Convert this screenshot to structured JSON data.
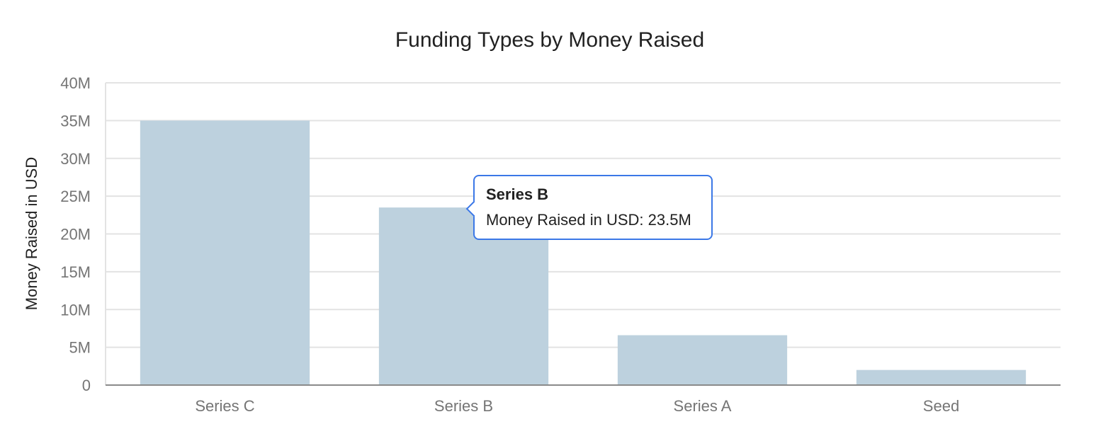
{
  "chart_data": {
    "type": "bar",
    "title": "Funding Types by Money Raised",
    "xlabel": "",
    "ylabel": "Money Raised in USD",
    "categories": [
      "Series C",
      "Series B",
      "Series A",
      "Seed"
    ],
    "series": [
      {
        "values": [
          35000000,
          23500000,
          6600000,
          2000000
        ]
      }
    ],
    "ylim": [
      0,
      40000000
    ],
    "yticks": [
      {
        "value": 0,
        "label": "0"
      },
      {
        "value": 5000000,
        "label": "5M"
      },
      {
        "value": 10000000,
        "label": "10M"
      },
      {
        "value": 15000000,
        "label": "15M"
      },
      {
        "value": 20000000,
        "label": "20M"
      },
      {
        "value": 25000000,
        "label": "25M"
      },
      {
        "value": 30000000,
        "label": "30M"
      },
      {
        "value": 35000000,
        "label": "35M"
      },
      {
        "value": 40000000,
        "label": "40M"
      }
    ],
    "grid": true,
    "legend": "none",
    "bar_color": "#bdd1de"
  },
  "tooltip": {
    "title": "Series B",
    "body": "Money Raised in USD: 23.5M",
    "border_color": "#3b78e7"
  }
}
